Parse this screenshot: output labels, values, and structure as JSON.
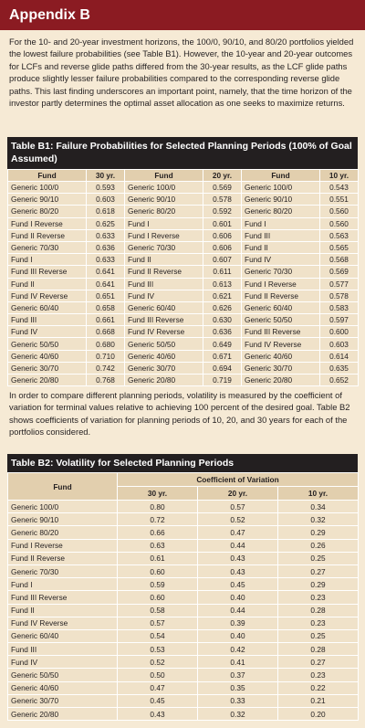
{
  "header": {
    "title": "Appendix B"
  },
  "paragraphs": [
    "For the 10- and 20-year investment horizons, the 100/0, 90/10, and 80/20 portfolios yielded the lowest failure probabilities (see Table B1). However, the 10-year and 20-year outcomes for LCFs and reverse glide paths differed from the 30-year results, as the LCF glide paths produce slightly lesser failure probabilities compared to the corresponding reverse glide paths. This last finding underscores an important point, namely, that the time horizon of the investor partly determines the optimal asset allocation as one seeks to maximize returns.",
    "In order to compare different planning periods, volatility is measured by the coefficient of variation for terminal values relative to achieving 100 percent of the desired goal. Table B2 shows coefficients of variation for planning periods of 10, 20, and 30 years for each of the portfolios considered."
  ],
  "table_b1": {
    "title": "Table B1: Failure Probabilities for Selected Planning Periods (100% of Goal Assumed)",
    "columns": [
      "Fund",
      "30 yr.",
      "Fund",
      "20 yr.",
      "Fund",
      "10 yr."
    ],
    "rows": [
      [
        "Generic 100/0",
        "0.593",
        "Generic 100/0",
        "0.569",
        "Generic 100/0",
        "0.543"
      ],
      [
        "Generic 90/10",
        "0.603",
        "Generic 90/10",
        "0.578",
        "Generic 90/10",
        "0.551"
      ],
      [
        "Generic 80/20",
        "0.618",
        "Generic 80/20",
        "0.592",
        "Generic 80/20",
        "0.560"
      ],
      [
        "Fund I Reverse",
        "0.625",
        "Fund I",
        "0.601",
        "Fund I",
        "0.560"
      ],
      [
        "Fund II Reverse",
        "0.633",
        "Fund I Reverse",
        "0.606",
        "Fund III",
        "0.563"
      ],
      [
        "Generic 70/30",
        "0.636",
        "Generic 70/30",
        "0.606",
        "Fund II",
        "0.565"
      ],
      [
        "Fund I",
        "0.633",
        "Fund II",
        "0.607",
        "Fund IV",
        "0.568"
      ],
      [
        "Fund III Reverse",
        "0.641",
        "Fund II Reverse",
        "0.611",
        "Generic 70/30",
        "0.569"
      ],
      [
        "Fund II",
        "0.641",
        "Fund III",
        "0.613",
        "Fund I Reverse",
        "0.577"
      ],
      [
        "Fund IV Reverse",
        "0.651",
        "Fund IV",
        "0.621",
        "Fund II Reverse",
        "0.578"
      ],
      [
        "Generic 60/40",
        "0.658",
        "Generic 60/40",
        "0.626",
        "Generic 60/40",
        "0.583"
      ],
      [
        "Fund III",
        "0.661",
        "Fund III Reverse",
        "0.630",
        "Generic 50/50",
        "0.597"
      ],
      [
        "Fund IV",
        "0.668",
        "Fund IV Reverse",
        "0.636",
        "Fund III Reverse",
        "0.600"
      ],
      [
        "Generic 50/50",
        "0.680",
        "Generic 50/50",
        "0.649",
        "Fund IV Reverse",
        "0.603"
      ],
      [
        "Generic 40/60",
        "0.710",
        "Generic 40/60",
        "0.671",
        "Generic 40/60",
        "0.614"
      ],
      [
        "Generic 30/70",
        "0.742",
        "Generic 30/70",
        "0.694",
        "Generic 30/70",
        "0.635"
      ],
      [
        "Generic 20/80",
        "0.768",
        "Generic 20/80",
        "0.719",
        "Generic 20/80",
        "0.652"
      ]
    ]
  },
  "table_b2": {
    "title": "Table B2: Volatility for Selected Planning Periods",
    "group_header": "Coefficient of Variation",
    "columns": [
      "Fund",
      "30 yr.",
      "20 yr.",
      "10 yr."
    ],
    "rows": [
      [
        "Generic 100/0",
        "0.80",
        "0.57",
        "0.34"
      ],
      [
        "Generic 90/10",
        "0.72",
        "0.52",
        "0.32"
      ],
      [
        "Generic 80/20",
        "0.66",
        "0.47",
        "0.29"
      ],
      [
        "Fund I Reverse",
        "0.63",
        "0.44",
        "0.26"
      ],
      [
        "Fund II Reverse",
        "0.61",
        "0.43",
        "0.25"
      ],
      [
        "Generic 70/30",
        "0.60",
        "0.43",
        "0.27"
      ],
      [
        "Fund I",
        "0.59",
        "0.45",
        "0.29"
      ],
      [
        "Fund III Reverse",
        "0.60",
        "0.40",
        "0.23"
      ],
      [
        "Fund II",
        "0.58",
        "0.44",
        "0.28"
      ],
      [
        "Fund IV Reverse",
        "0.57",
        "0.39",
        "0.23"
      ],
      [
        "Generic 60/40",
        "0.54",
        "0.40",
        "0.25"
      ],
      [
        "Fund III",
        "0.53",
        "0.42",
        "0.28"
      ],
      [
        "Fund IV",
        "0.52",
        "0.41",
        "0.27"
      ],
      [
        "Generic 50/50",
        "0.50",
        "0.37",
        "0.23"
      ],
      [
        "Generic 40/60",
        "0.47",
        "0.35",
        "0.22"
      ],
      [
        "Generic 30/70",
        "0.45",
        "0.33",
        "0.21"
      ],
      [
        "Generic 20/80",
        "0.43",
        "0.32",
        "0.20"
      ]
    ]
  }
}
